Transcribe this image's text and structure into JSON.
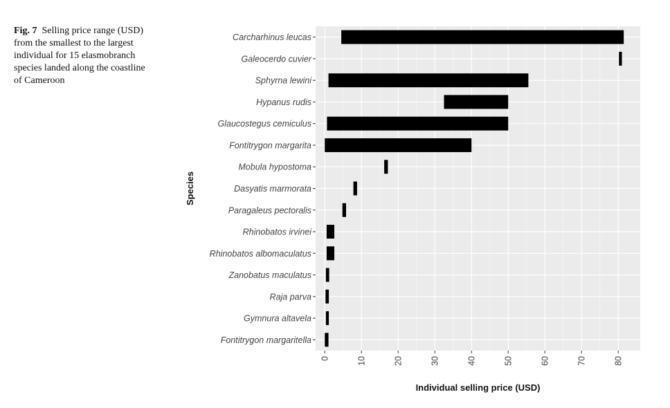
{
  "caption": {
    "label": "Fig. 7",
    "text": "Selling price range (USD) from the smallest to the largest individual for 15 elasmobranch species landed along the coastline of Cameroon"
  },
  "chart_data": {
    "type": "bar",
    "orientation": "horizontal",
    "style": "floating range bars",
    "xlabel": "Individual selling price (USD)",
    "ylabel": "Species",
    "xlim": [
      -2.5,
      86
    ],
    "xticks": [
      0,
      10,
      20,
      30,
      40,
      50,
      60,
      70,
      80
    ],
    "grid": true,
    "legend": "none",
    "bar_color": "#000000",
    "panel_color": "#ebebeb",
    "categories": [
      "Carcharhinus leucas",
      "Galeocerdo cuvier",
      "Sphyrna lewini",
      "Hypanus rudis",
      "Glaucostegus cemiculus",
      "Fontitrygon margarita",
      "Mobula hypostoma",
      "Dasyatis marmorata",
      "Paragaleus pectoralis",
      "Rhinobatos irvinei",
      "Rhinobatos albomaculatus",
      "Zanobatus maculatus",
      "Raja parva",
      "Gymnura altavela",
      "Fontitrygon margaritella"
    ],
    "ranges": [
      [
        4.5,
        81.5
      ],
      [
        80.2,
        81.0
      ],
      [
        1.0,
        55.5
      ],
      [
        32.5,
        50.0
      ],
      [
        0.6,
        50.0
      ],
      [
        0.0,
        40.0
      ],
      [
        16.2,
        17.2
      ],
      [
        7.8,
        8.8
      ],
      [
        4.8,
        5.8
      ],
      [
        0.5,
        2.6
      ],
      [
        0.5,
        2.6
      ],
      [
        0.3,
        1.2
      ],
      [
        0.2,
        1.1
      ],
      [
        0.3,
        1.1
      ],
      [
        0.0,
        1.0
      ]
    ]
  }
}
